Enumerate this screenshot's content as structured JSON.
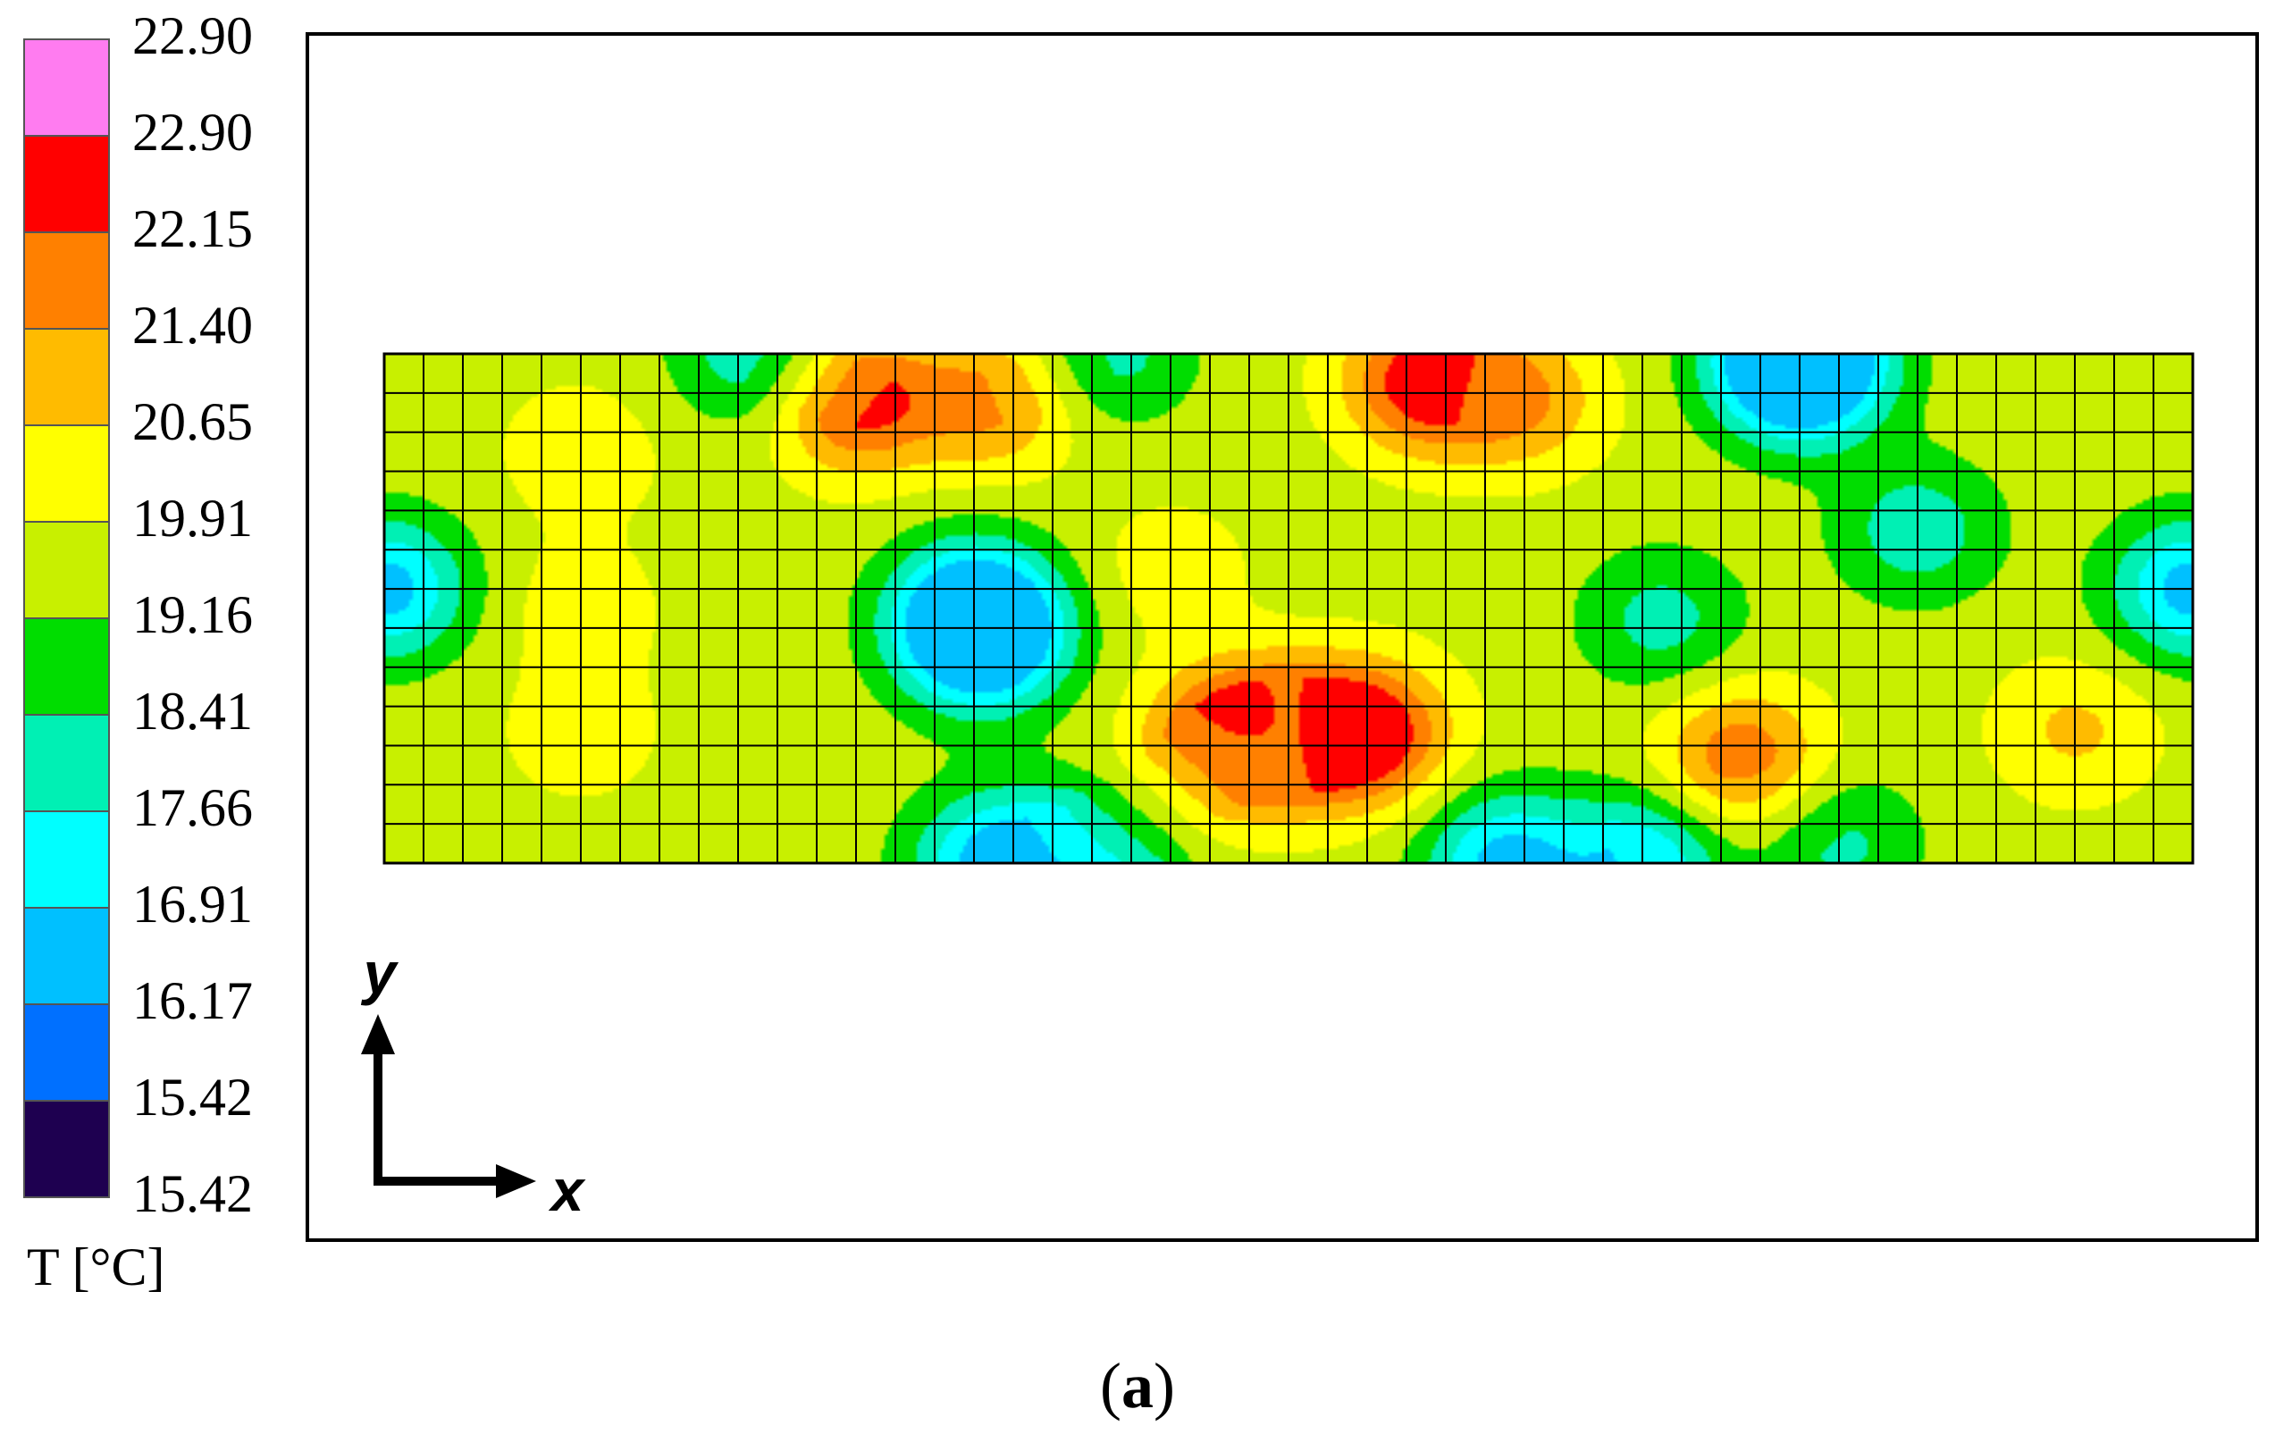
{
  "chart_data": {
    "type": "heatmap",
    "title": "",
    "xlabel": "x",
    "ylabel": "y",
    "colorbar": {
      "title": "T [°C]",
      "tick_labels": [
        "22.90",
        "22.90",
        "22.15",
        "21.40",
        "20.65",
        "19.91",
        "19.16",
        "18.41",
        "17.66",
        "16.91",
        "16.17",
        "15.42",
        "15.42"
      ],
      "band_colors": [
        "#ff7cf0",
        "#ff0000",
        "#ff8000",
        "#ffbb00",
        "#ffff00",
        "#c8f000",
        "#00dd00",
        "#00f0b4",
        "#00ffff",
        "#00c0ff",
        "#0070ff",
        "#1e0050"
      ]
    },
    "grid": {
      "columns": 46,
      "rows": 13,
      "visible": true
    },
    "hot_spots": [
      {
        "x": 12,
        "y": 11.8,
        "value": 22.6
      },
      {
        "x": 15.5,
        "y": 11.8,
        "value": 21.6
      },
      {
        "x": 26.5,
        "y": 12.3,
        "value": 22.8
      },
      {
        "x": 29,
        "y": 11.8,
        "value": 21.3
      },
      {
        "x": 21.5,
        "y": 3.2,
        "value": 22.7
      },
      {
        "x": 25,
        "y": 3.3,
        "value": 22.8
      },
      {
        "x": 23.2,
        "y": 3.3,
        "value": 21.6
      },
      {
        "x": 34.5,
        "y": 2.7,
        "value": 22.0
      },
      {
        "x": 43,
        "y": 3.4,
        "value": 20.8
      },
      {
        "x": 5,
        "y": 10.5,
        "value": 20.4
      },
      {
        "x": 5,
        "y": 6.5,
        "value": 20.3
      },
      {
        "x": 5,
        "y": 3.3,
        "value": 20.3
      },
      {
        "x": 20,
        "y": 7.5,
        "value": 20.3
      },
      {
        "x": 19.5,
        "y": 1.5,
        "value": 19.9
      }
    ],
    "cold_spots": [
      {
        "x": 15,
        "y": 6.5,
        "value": 16.8
      },
      {
        "x": 15.2,
        "y": 5.7,
        "value": 15.9
      },
      {
        "x": 0,
        "y": 7,
        "value": 16.5
      },
      {
        "x": 46,
        "y": 7,
        "value": 16.5
      },
      {
        "x": 36,
        "y": 12.5,
        "value": 16.9
      },
      {
        "x": 36,
        "y": 13,
        "value": 15.8
      },
      {
        "x": 15.5,
        "y": 0,
        "value": 16.6
      },
      {
        "x": 18,
        "y": 0,
        "value": 16.6
      },
      {
        "x": 28.5,
        "y": 0,
        "value": 16.6
      },
      {
        "x": 32,
        "y": 0,
        "value": 16.9
      },
      {
        "x": 39,
        "y": 8.5,
        "value": 17.9
      },
      {
        "x": 32.5,
        "y": 6.2,
        "value": 18.1
      },
      {
        "x": 9.5,
        "y": 13,
        "value": 17.7
      },
      {
        "x": 18.5,
        "y": 13,
        "value": 18.1
      },
      {
        "x": 37,
        "y": 0.5,
        "value": 18.2
      }
    ]
  },
  "caption": {
    "open": "(",
    "label": "a",
    "close": ")"
  }
}
